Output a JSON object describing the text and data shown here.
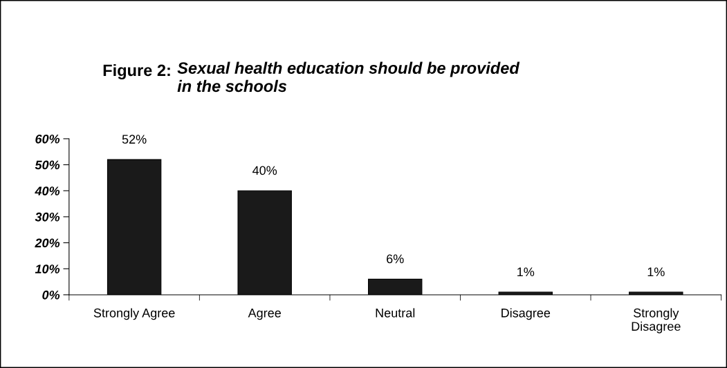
{
  "chart_data": {
    "type": "bar",
    "title": "Figure 2: Sexual health education should be provided\nin the schools",
    "categories": [
      "Strongly Agree",
      "Agree",
      "Neutral",
      "Disagree",
      "Strongly\nDisagree"
    ],
    "values": [
      52,
      40,
      6,
      1,
      1
    ],
    "color": "#1a1a1a",
    "value_labels": [
      "52%",
      "40%",
      "6%",
      "1%",
      "1%"
    ],
    "ylim": [
      0,
      60
    ],
    "yticks": [
      {
        "value": 0,
        "label": "0%"
      },
      {
        "value": 10,
        "label": "10%"
      },
      {
        "value": 20,
        "label": "20%"
      },
      {
        "value": 30,
        "label": "30%"
      },
      {
        "value": 40,
        "label": "40%"
      },
      {
        "value": 50,
        "label": "50%"
      },
      {
        "value": 60,
        "label": "60%"
      }
    ],
    "grid": false,
    "legend": false
  }
}
